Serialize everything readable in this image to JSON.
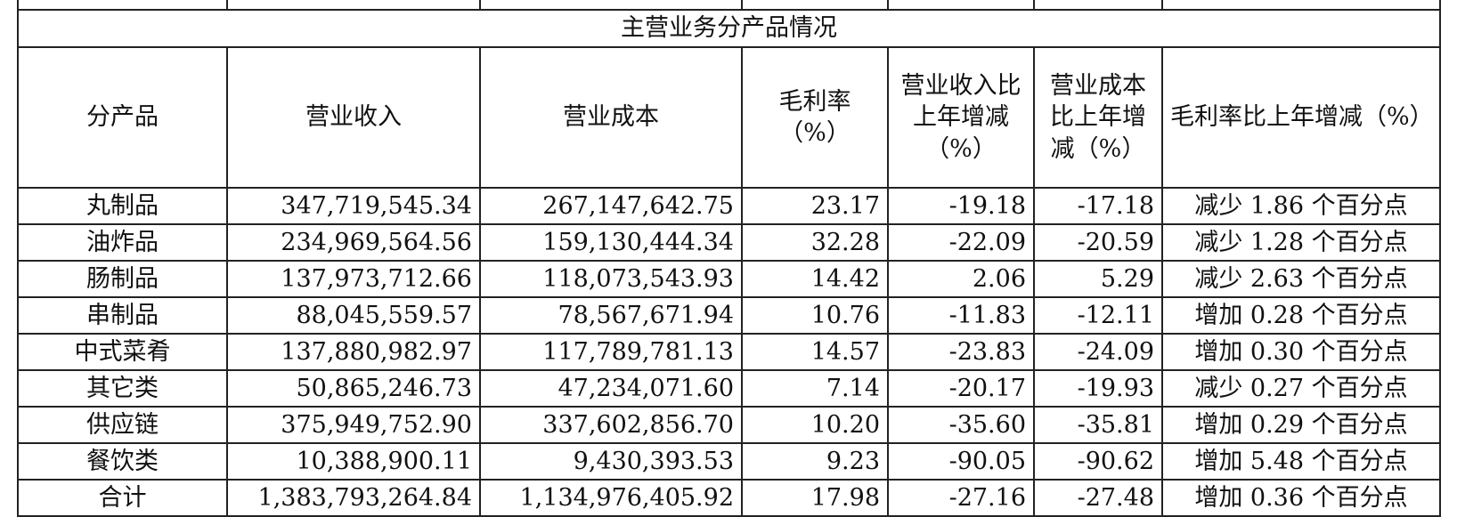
{
  "table": {
    "title": "主营业务分产品情况",
    "header": [
      "分产品",
      "营业收入",
      "营业成本",
      "毛利率（%）",
      "营业收入比上年增减（%）",
      "营业成本比上年增减（%）",
      "毛利率比上年增减（%）"
    ],
    "rows": [
      [
        "丸制品",
        "347,719,545.34",
        "267,147,642.75",
        "23.17",
        "-19.18",
        "-17.18",
        "减少 1.86 个百分点"
      ],
      [
        "油炸品",
        "234,969,564.56",
        "159,130,444.34",
        "32.28",
        "-22.09",
        "-20.59",
        "减少 1.28 个百分点"
      ],
      [
        "肠制品",
        "137,973,712.66",
        "118,073,543.93",
        "14.42",
        "2.06",
        "5.29",
        "减少 2.63 个百分点"
      ],
      [
        "串制品",
        "88,045,559.57",
        "78,567,671.94",
        "10.76",
        "-11.83",
        "-12.11",
        "增加 0.28 个百分点"
      ],
      [
        "中式菜肴",
        "137,880,982.97",
        "117,789,781.13",
        "14.57",
        "-23.83",
        "-24.09",
        "增加 0.30 个百分点"
      ],
      [
        "其它类",
        "50,865,246.73",
        "47,234,071.60",
        "7.14",
        "-20.17",
        "-19.93",
        "减少 0.27 个百分点"
      ],
      [
        "供应链",
        "375,949,752.90",
        "337,602,856.70",
        "10.20",
        "-35.60",
        "-35.81",
        "增加 0.29 个百分点"
      ],
      [
        "餐饮类",
        "10,388,900.11",
        "9,430,393.53",
        "9.23",
        "-90.05",
        "-90.62",
        "增加 5.48 个百分点"
      ],
      [
        "合计",
        "1,383,793,264.84",
        "1,134,976,405.92",
        "17.98",
        "-27.16",
        "-27.48",
        "增加 0.36 个百分点"
      ]
    ]
  }
}
